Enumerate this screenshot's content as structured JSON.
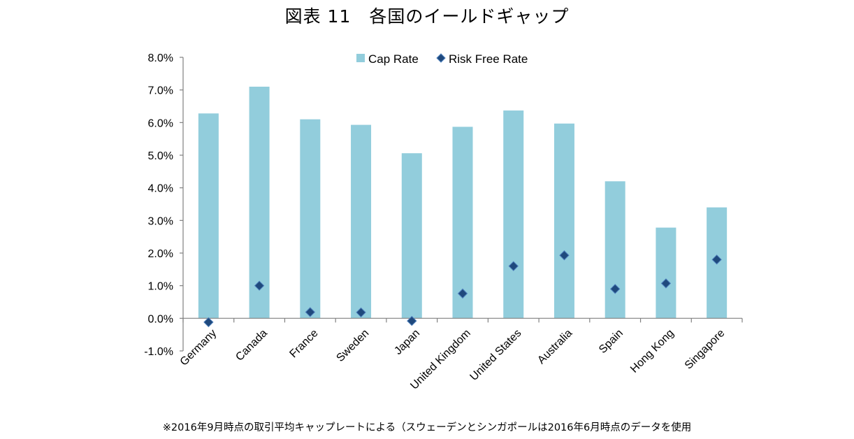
{
  "title": "図表 11　各国のイールドギャップ",
  "footnote": "※2016年9月時点の取引平均キャップレートによる（スウェーデンとシンガポールは2016年6月時点のデータを使用",
  "colors": {
    "bar": "#92CDDC",
    "marker": "#1F497D",
    "marker_edge": "#4F81BD",
    "axis": "#808080"
  },
  "chart_data": {
    "type": "bar",
    "categories": [
      "Germany",
      "Canada",
      "France",
      "Sweden",
      "Japan",
      "United Kingdom",
      "United States",
      "Australia",
      "Spain",
      "Hong Kong",
      "Singapore"
    ],
    "series": [
      {
        "name": "Cap Rate",
        "type": "bar",
        "values": [
          6.28,
          7.1,
          6.1,
          5.93,
          5.06,
          5.87,
          6.37,
          5.97,
          4.2,
          2.78,
          3.4
        ]
      },
      {
        "name": "Risk Free Rate",
        "type": "scatter",
        "marker": "diamond",
        "values": [
          -0.12,
          1.0,
          0.19,
          0.18,
          -0.08,
          0.76,
          1.6,
          1.93,
          0.9,
          1.07,
          1.8
        ]
      }
    ],
    "ylim": [
      -1.0,
      8.0
    ],
    "yticks": [
      8.0,
      7.0,
      6.0,
      5.0,
      4.0,
      3.0,
      2.0,
      1.0,
      0.0,
      -1.0
    ],
    "ytick_labels": [
      "8.0%",
      "7.0%",
      "6.0%",
      "5.0%",
      "4.0%",
      "3.0%",
      "2.0%",
      "1.0%",
      "0.0%",
      "-1.0%"
    ],
    "xlabel": "",
    "ylabel": "",
    "legend": {
      "position": "top-center",
      "entries": [
        "Cap Rate",
        "Risk Free Rate"
      ]
    },
    "grid": false
  }
}
